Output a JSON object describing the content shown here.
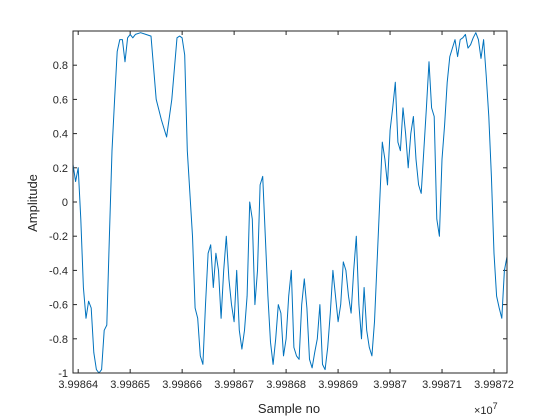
{
  "chart_data": {
    "type": "line",
    "xlabel": "Sample no",
    "ylabel": "Amplitude",
    "x_multiplier_label": "×10",
    "x_multiplier_exponent": "7",
    "xlim": [
      39986390,
      39987225
    ],
    "ylim": [
      -1,
      1
    ],
    "x_ticks": [
      39986400,
      39986500,
      39986600,
      39986700,
      39986800,
      39986900,
      39987000,
      39987100,
      39987200
    ],
    "x_tick_labels": [
      "3.99864",
      "3.99865",
      "3.99866",
      "3.99867",
      "3.99868",
      "3.99869",
      "3.9987",
      "3.99871",
      "3.99872"
    ],
    "y_ticks": [
      -1,
      -0.8,
      -0.6,
      -0.4,
      -0.2,
      0,
      0.2,
      0.4,
      0.6,
      0.8
    ],
    "y_tick_labels": [
      "-1",
      "-0.8",
      "-0.6",
      "-0.4",
      "-0.2",
      "0",
      "0.2",
      "0.4",
      "0.6",
      "0.8"
    ],
    "grid": false,
    "box": true,
    "series_color": "#0072BD",
    "series": [
      {
        "x": [
          39986390,
          39986395,
          39986400,
          39986405,
          39986410,
          39986415,
          39986420,
          39986425,
          39986430,
          39986435,
          39986440,
          39986445,
          39986450,
          39986455,
          39986460,
          39986465,
          39986470,
          39986475,
          39986480,
          39986485,
          39986490,
          39986495,
          39986500,
          39986505,
          39986510,
          39986520,
          39986530,
          39986540,
          39986550,
          39986560,
          39986570,
          39986580,
          39986590,
          39986595,
          39986600,
          39986605,
          39986610,
          39986620,
          39986625,
          39986630,
          39986635,
          39986640,
          39986645,
          39986650,
          39986655,
          39986660,
          39986665,
          39986670,
          39986675,
          39986680,
          39986685,
          39986690,
          39986695,
          39986700,
          39986705,
          39986710,
          39986715,
          39986720,
          39986725,
          39986730,
          39986735,
          39986740,
          39986745,
          39986750,
          39986755,
          39986760,
          39986765,
          39986770,
          39986775,
          39986780,
          39986785,
          39986790,
          39986795,
          39986800,
          39986805,
          39986810,
          39986815,
          39986820,
          39986825,
          39986830,
          39986835,
          39986840,
          39986845,
          39986850,
          39986855,
          39986860,
          39986865,
          39986870,
          39986875,
          39986880,
          39986885,
          39986890,
          39986895,
          39986900,
          39986905,
          39986910,
          39986915,
          39986920,
          39986925,
          39986930,
          39986935,
          39986940,
          39986945,
          39986950,
          39986955,
          39986960,
          39986965,
          39986970,
          39986975,
          39986980,
          39986985,
          39986990,
          39986995,
          39987000,
          39987005,
          39987010,
          39987015,
          39987020,
          39987025,
          39987030,
          39987035,
          39987040,
          39987045,
          39987050,
          39987055,
          39987060,
          39987065,
          39987070,
          39987075,
          39987080,
          39987085,
          39987090,
          39987095,
          39987100,
          39987105,
          39987110,
          39987115,
          39987120,
          39987125,
          39987130,
          39987135,
          39987140,
          39987145,
          39987150,
          39987155,
          39987160,
          39987165,
          39987170,
          39987175,
          39987180,
          39987185,
          39987190,
          39987195,
          39987200,
          39987205,
          39987210,
          39987215,
          39987220,
          39987225
        ],
        "y": [
          0.22,
          0.12,
          0.2,
          -0.1,
          -0.5,
          -0.68,
          -0.58,
          -0.62,
          -0.88,
          -0.98,
          -1,
          -0.98,
          -0.75,
          -0.72,
          -0.2,
          0.3,
          0.6,
          0.88,
          0.95,
          0.95,
          0.82,
          0.96,
          0.98,
          0.96,
          0.98,
          0.99,
          0.98,
          0.97,
          0.6,
          0.48,
          0.38,
          0.6,
          0.96,
          0.97,
          0.96,
          0.86,
          0.3,
          -0.2,
          -0.62,
          -0.68,
          -0.9,
          -0.95,
          -0.6,
          -0.3,
          -0.25,
          -0.5,
          -0.3,
          -0.4,
          -0.68,
          -0.4,
          -0.2,
          -0.45,
          -0.6,
          -0.7,
          -0.4,
          -0.75,
          -0.86,
          -0.75,
          -0.55,
          0.0,
          -0.1,
          -0.6,
          -0.4,
          0.1,
          0.15,
          -0.2,
          -0.55,
          -0.82,
          -0.95,
          -0.8,
          -0.6,
          -0.65,
          -0.9,
          -0.8,
          -0.55,
          -0.4,
          -0.85,
          -0.9,
          -0.92,
          -0.6,
          -0.45,
          -0.62,
          -0.92,
          -0.97,
          -0.88,
          -0.8,
          -0.6,
          -0.95,
          -0.98,
          -0.85,
          -0.65,
          -0.4,
          -0.55,
          -0.7,
          -0.6,
          -0.35,
          -0.4,
          -0.55,
          -0.65,
          -0.4,
          -0.2,
          -0.6,
          -0.8,
          -0.5,
          -0.75,
          -0.85,
          -0.9,
          -0.7,
          -0.35,
          0.0,
          0.35,
          0.25,
          0.1,
          0.42,
          0.55,
          0.7,
          0.35,
          0.3,
          0.55,
          0.4,
          0.2,
          0.4,
          0.5,
          0.25,
          0.1,
          0.05,
          0.3,
          0.55,
          0.82,
          0.55,
          0.5,
          -0.1,
          -0.2,
          0.25,
          0.45,
          0.7,
          0.85,
          0.9,
          0.95,
          0.85,
          0.95,
          0.96,
          0.98,
          0.9,
          0.92,
          0.96,
          0.99,
          0.95,
          0.84,
          0.95,
          0.74,
          0.5,
          0.15,
          -0.3,
          -0.55,
          -0.62,
          -0.68,
          -0.4,
          -0.32
        ]
      }
    ]
  }
}
